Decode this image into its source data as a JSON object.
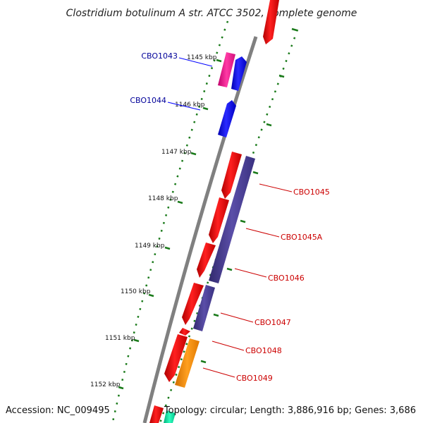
{
  "title": "Clostridium botulinum A str. ATCC 3502, complete genome",
  "accession": "Accession: NC_009495",
  "topology": "Topology: circular; Length: 3,886,916 bp; Genes: 3,686",
  "ticks": [
    "1145 kbp",
    "1146 kbp",
    "1147 kbp",
    "1148 kbp",
    "1149 kbp",
    "1150 kbp",
    "1151 kbp",
    "1152 kbp"
  ],
  "genes": [
    {
      "label": "CBO1043",
      "color": "#000099"
    },
    {
      "label": "CBO1044",
      "color": "#000099"
    },
    {
      "label": "CBO1045",
      "color": "#cc0000"
    },
    {
      "label": "CBO1045A",
      "color": "#cc0000"
    },
    {
      "label": "CBO1046",
      "color": "#cc0000"
    },
    {
      "label": "CBO1047",
      "color": "#cc0000"
    },
    {
      "label": "CBO1048",
      "color": "#cc0000"
    },
    {
      "label": "CBO1049",
      "color": "#cc0000"
    }
  ],
  "colors": {
    "backbone": "#8a8a8a",
    "tick": "#1a7a1a",
    "forward_gene": "#ff0000",
    "reverse_gene": "#0000ff",
    "pink_gene": "#ff1493",
    "purple_gene": "#483d8b",
    "orange_gene": "#ff8c00",
    "teal_gene": "#00e5a0"
  }
}
